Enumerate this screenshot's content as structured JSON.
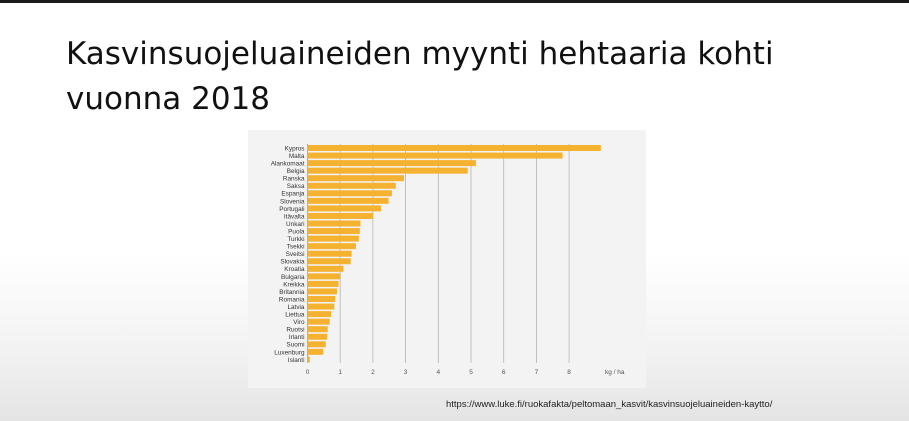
{
  "slide": {
    "title_line1": "Kasvinsuojeluaineiden myynti hehtaaria kohti",
    "title_line2": "vuonna 2018",
    "source": "https://www.luke.fi/ruokafakta/peltomaan_kasvit/kasvinsuojeluaineiden-kaytto/"
  },
  "chart_data": {
    "type": "bar",
    "orientation": "horizontal",
    "title": "",
    "xlabel": "kg / ha",
    "ylabel": "",
    "xlim": [
      0,
      9
    ],
    "xticks": [
      0,
      1,
      2,
      3,
      4,
      5,
      6,
      7,
      8
    ],
    "grid": "vertical",
    "bar_color": "#f5b231",
    "categories": [
      "Kypros",
      "Malta",
      "Alankomaat",
      "Belgia",
      "Ranska",
      "Saksa",
      "Espanja",
      "Slovenia",
      "Portugali",
      "Itävalta",
      "Unkari",
      "Puola",
      "Turkki",
      "Tsekki",
      "Sveitsi",
      "Slovakia",
      "Kroatia",
      "Bulgaria",
      "Kreikka",
      "Britannia",
      "Romania",
      "Latvia",
      "Liettua",
      "Viro",
      "Ruotsi",
      "Irlanti",
      "Suomi",
      "Luxenburg",
      "Islanti"
    ],
    "values": [
      8.97,
      7.8,
      5.15,
      4.9,
      2.95,
      2.7,
      2.58,
      2.48,
      2.25,
      2.0,
      1.62,
      1.6,
      1.57,
      1.48,
      1.35,
      1.32,
      1.1,
      1.0,
      0.95,
      0.9,
      0.85,
      0.82,
      0.72,
      0.68,
      0.62,
      0.6,
      0.56,
      0.48,
      0.07
    ]
  }
}
